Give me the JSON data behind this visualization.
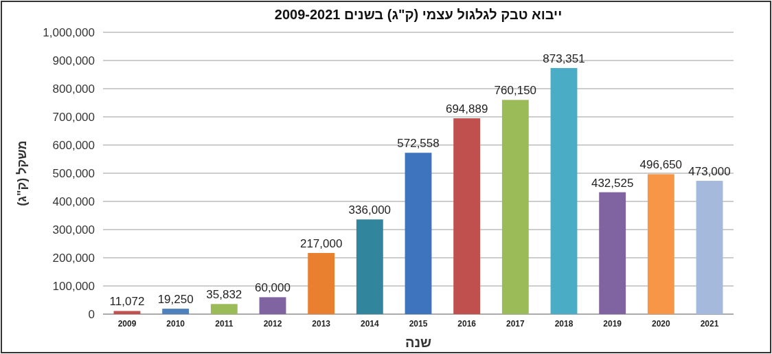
{
  "chart_data": {
    "type": "bar",
    "title": "ייבוא טבק לגלגול עצמי (ק\"ג) בשנים 2009-2021",
    "xlabel": "שנה",
    "ylabel": "משקל (ק\"ג)",
    "categories": [
      "2009",
      "2010",
      "2011",
      "2012",
      "2013",
      "2014",
      "2015",
      "2016",
      "2017",
      "2018",
      "2019",
      "2020",
      "2021"
    ],
    "values": [
      11072,
      19250,
      35832,
      60000,
      217000,
      336000,
      572558,
      694889,
      760150,
      873351,
      432525,
      496650,
      473000
    ],
    "value_labels": [
      "11,072",
      "19,250",
      "35,832",
      "60,000",
      "217,000",
      "336,000",
      "572,558",
      "694,889",
      "760,150",
      "873,351",
      "432,525",
      "496,650",
      "473,000"
    ],
    "colors": [
      "#c0504d",
      "#4f81bd",
      "#9bbb59",
      "#8064a2",
      "#e8802f",
      "#31859c",
      "#3e74bd",
      "#c0504d",
      "#9bbb59",
      "#4bacc6",
      "#8064a2",
      "#f79646",
      "#a5b9dc"
    ],
    "ylim": [
      0,
      1000000
    ],
    "yticks": [
      0,
      {
        "value": 100000,
        "label": "100,000"
      },
      {
        "value": 200000,
        "label": "200,000"
      },
      {
        "value": 300000,
        "label": "300,000"
      },
      {
        "value": 400000,
        "label": "400,000"
      },
      {
        "value": 500000,
        "label": "500,000"
      },
      {
        "value": 600000,
        "label": "600,000"
      },
      {
        "value": 700000,
        "label": "700,000"
      },
      {
        "value": 800000,
        "label": "800,000"
      },
      {
        "value": 900000,
        "label": "900,000"
      },
      {
        "value": 1000000,
        "label": "1,000,000"
      }
    ],
    "grid": "y"
  }
}
